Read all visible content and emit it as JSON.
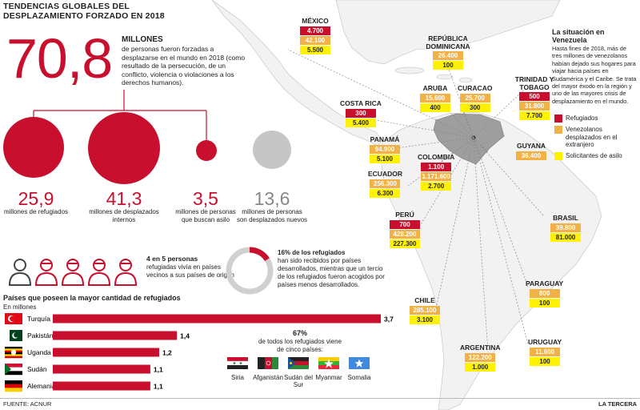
{
  "header": {
    "title": "TENDENCIAS GLOBALES DEL DESPLAZAMIENTO FORZADO EN 2018",
    "big_number": "70,8",
    "big_unit": "MILLONES",
    "big_desc": "de personas fueron forzadas a desplazarse en el mundo en 2018 (como resultado de la persecución, de un conflicto, violencia o violaciones a los derechos humanos)."
  },
  "stats": [
    {
      "value": "25,9",
      "label": "millones de refugiados",
      "color": "#c8102e"
    },
    {
      "value": "41,3",
      "label": "millones de desplazados internos",
      "color": "#c8102e"
    },
    {
      "value": "3,5",
      "label": "millones de personas que buscan asilo",
      "color": "#c8102e"
    },
    {
      "value": "13,6",
      "label": "millones de personas son desplazados nuevos",
      "color": "#c0c0c0"
    }
  ],
  "people": {
    "bold": "4 en 5 personas",
    "text": "refugiadas vivía en países vecinos a sus países de origen",
    "red_count": 4,
    "total": 5
  },
  "donut": {
    "bold": "16% de los refugiados",
    "text": "han sido recibidos por países desarrollados, mientras que un tercio de los refugiados fueron acogidos por países menos desarrollados.",
    "percent": 16
  },
  "chart_data": {
    "type": "bar",
    "title": "Países que poseen la mayor cantidad de refugiados",
    "subtitle": "En millones",
    "categories": [
      "Turquía",
      "Pakistán",
      "Uganda",
      "Sudán",
      "Alemania"
    ],
    "values": [
      3.7,
      1.4,
      1.2,
      1.1,
      1.1
    ],
    "value_labels": [
      "3,7",
      "1,4",
      "1,2",
      "1,1",
      "1,1"
    ],
    "color": "#c8102e"
  },
  "five": {
    "bold": "67%",
    "text": "de todos los refugiados viene de cinco países:",
    "countries": [
      "Siria",
      "Afganistán",
      "Sudán del Sur",
      "Myanmar",
      "Somalia"
    ]
  },
  "legend": {
    "items": [
      {
        "label": "Refugiados",
        "color": "#c8102e"
      },
      {
        "label": "Venezolanos desplazados en el extranjero",
        "color": "#f2b146"
      },
      {
        "label": "Solicitantes de asilo",
        "color": "#fff200"
      }
    ]
  },
  "situation": {
    "title": "La situación en Venezuela",
    "text": "Hasta fines de 2018, más de tres millones de venezolanos habían dejado sus hogares para viajar hacia países en Sudamérica y el Caribe. Se trata del mayor éxodo en la región y uno de las mayores crisis de desplazamiento en el mundo."
  },
  "map": {
    "countries": [
      {
        "name": "MÉXICO",
        "values": [
          "4.700",
          "42.100",
          "5.500"
        ]
      },
      {
        "name": "REPÚBLICA DOMINICANA",
        "values": [
          "26.400",
          "100"
        ]
      },
      {
        "name": "ARUBA",
        "values": [
          "15.600",
          "400"
        ]
      },
      {
        "name": "CURACAO",
        "values": [
          "25.700",
          "300"
        ]
      },
      {
        "name": "TRINIDAD Y TOBAGO",
        "values": [
          "500",
          "31.800",
          "7.700"
        ]
      },
      {
        "name": "COSTA RICA",
        "values": [
          "300",
          "5.400"
        ]
      },
      {
        "name": "PANAMÁ",
        "values": [
          "94.900",
          "5.100"
        ]
      },
      {
        "name": "GUYANA",
        "values": [
          "36.400"
        ]
      },
      {
        "name": "ECUADOR",
        "values": [
          "256.300",
          "6.300"
        ]
      },
      {
        "name": "COLOMBIA",
        "values": [
          "1.100",
          "1.171.600",
          "2.700"
        ]
      },
      {
        "name": "PERÚ",
        "values": [
          "700",
          "428.200",
          "227.300"
        ]
      },
      {
        "name": "BRASIL",
        "values": [
          "39.800",
          "81.000"
        ]
      },
      {
        "name": "CHILE",
        "values": [
          "285.100",
          "3.100"
        ]
      },
      {
        "name": "PARAGUAY",
        "values": [
          "800",
          "100"
        ]
      },
      {
        "name": "ARGENTINA",
        "values": [
          "122.200",
          "1.000"
        ]
      },
      {
        "name": "URUGUAY",
        "values": [
          "11.600",
          "100"
        ]
      }
    ]
  },
  "footer": {
    "source": "FUENTE: ACNUR",
    "credit": "LA TERCERA"
  }
}
